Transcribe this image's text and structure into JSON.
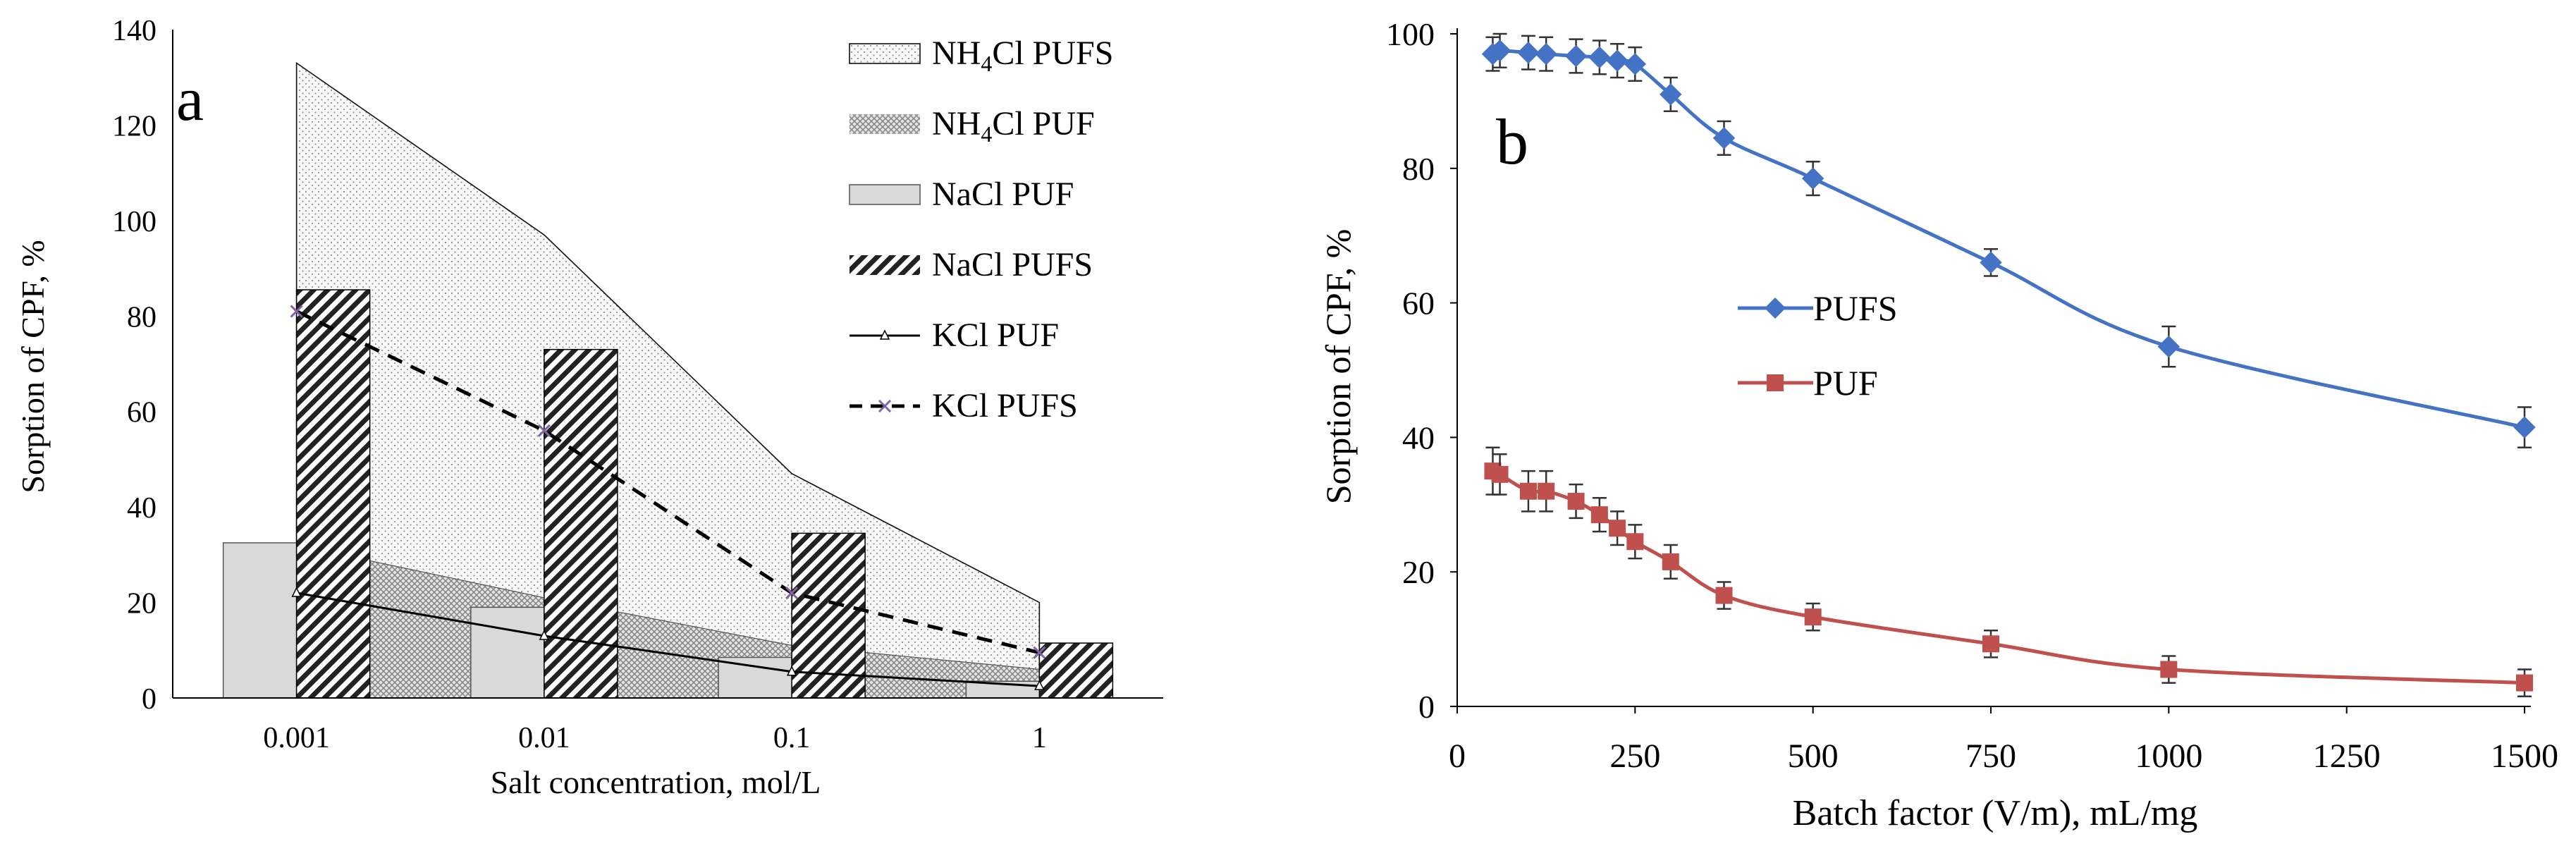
{
  "chart_data": [
    {
      "panel_label": "a",
      "type": "bar",
      "categories": [
        "0.001",
        "0.01",
        "0.1",
        "1"
      ],
      "xlabel": "Salt concentration,  mol/L",
      "ylabel": "Sorption of CPF, %",
      "ylim": [
        0,
        140
      ],
      "yticks": [
        "0",
        "20",
        "40",
        "60",
        "80",
        "100",
        "120",
        "140"
      ],
      "grid": false,
      "legend_position": "top-right",
      "series": [
        {
          "name": "NH4Cl PUFS",
          "legend_main": "NH",
          "legend_sub": "4",
          "legend_rest": "Cl PUFS",
          "kind": "area",
          "values": [
            133,
            97,
            47,
            20
          ]
        },
        {
          "name": "NH4Cl PUF",
          "legend_main": "NH",
          "legend_sub": "4",
          "legend_rest": "Cl PUF",
          "kind": "area",
          "values": [
            32,
            21,
            11,
            6
          ]
        },
        {
          "name": "NaCl PUF",
          "kind": "bar",
          "values": [
            32.5,
            19,
            8.5,
            3.5
          ]
        },
        {
          "name": "NaCl PUFS",
          "kind": "bar",
          "values": [
            85.5,
            73,
            34.5,
            11.5
          ]
        },
        {
          "name": "KCl PUF",
          "kind": "line",
          "values": [
            22,
            13,
            5.5,
            2.5
          ]
        },
        {
          "name": "KCl PUFS",
          "kind": "dashed-line",
          "values": [
            81,
            56,
            22,
            9.5
          ]
        }
      ],
      "colors": {
        "bar_fill": "#d9d9d9",
        "dashed_marker": "#8064a2",
        "line": "#000000"
      }
    },
    {
      "panel_label": "b",
      "type": "line",
      "xlabel": "Batch factor (V/m), mL/mg",
      "ylabel": "Sorption of CPF, %",
      "xlim": [
        0,
        1500
      ],
      "ylim": [
        0,
        100
      ],
      "xticks": [
        "0",
        "250",
        "500",
        "750",
        "1000",
        "1250",
        "1500"
      ],
      "yticks": [
        "0",
        "20",
        "40",
        "60",
        "80",
        "100"
      ],
      "grid": false,
      "legend_position": "center-left",
      "series": [
        {
          "name": "PUFS",
          "color": "#4472c4",
          "marker": "diamond",
          "x": [
            50,
            60,
            100,
            125,
            167,
            200,
            225,
            250,
            300,
            375,
            500,
            750,
            1000,
            1500
          ],
          "y": [
            97,
            97.5,
            97.2,
            97,
            96.7,
            96.5,
            96,
            95.5,
            91,
            84.5,
            78.5,
            66,
            53.5,
            41.5
          ],
          "err": [
            2.5,
            2.5,
            2.5,
            2.5,
            2.5,
            2.5,
            2.5,
            2.5,
            2.5,
            2.5,
            2.5,
            2,
            3,
            3
          ]
        },
        {
          "name": "PUF",
          "color": "#c0504d",
          "marker": "square",
          "x": [
            50,
            60,
            100,
            125,
            167,
            200,
            225,
            250,
            300,
            375,
            500,
            750,
            1000,
            1500
          ],
          "y": [
            35,
            34.5,
            32,
            32,
            30.5,
            28.5,
            26.5,
            24.5,
            21.5,
            16.5,
            13.3,
            9.3,
            5.5,
            3.5
          ],
          "err": [
            3.5,
            3,
            3,
            3,
            2.5,
            2.5,
            2.5,
            2.5,
            2.5,
            2,
            2,
            2,
            2,
            2
          ]
        }
      ]
    }
  ]
}
